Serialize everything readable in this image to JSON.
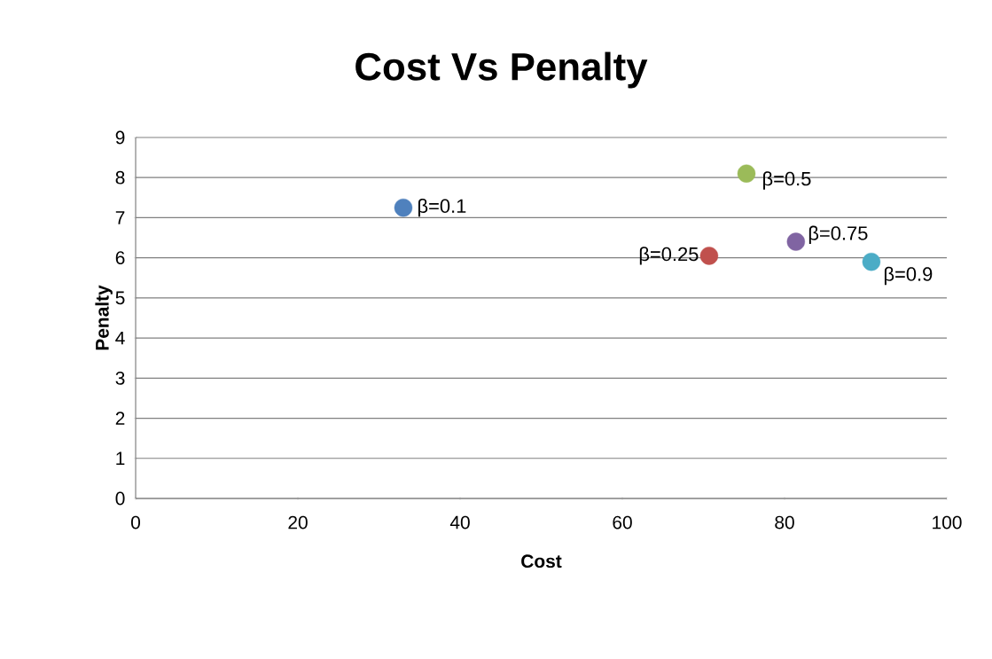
{
  "chart_data": {
    "type": "scatter",
    "title": "Cost Vs Penalty",
    "xlabel": "Cost",
    "ylabel": "Penalty",
    "xlim": [
      0,
      100
    ],
    "ylim": [
      0,
      9
    ],
    "xticks": [
      0,
      20,
      40,
      60,
      80,
      100
    ],
    "yticks": [
      0,
      1,
      2,
      3,
      4,
      5,
      6,
      7,
      8,
      9
    ],
    "grid": "y",
    "marker": "circle",
    "series": [
      {
        "name": "β=0.1",
        "color": "#4f81bd",
        "x": [
          33
        ],
        "values": [
          7.25
        ]
      },
      {
        "name": "β=0.25",
        "color": "#c0504d",
        "x": [
          70.7
        ],
        "values": [
          6.05
        ]
      },
      {
        "name": "β=0.5",
        "color": "#9bbb59",
        "x": [
          75.3
        ],
        "values": [
          8.1
        ]
      },
      {
        "name": "β=0.75",
        "color": "#8064a2",
        "x": [
          81.4
        ],
        "values": [
          6.4
        ]
      },
      {
        "name": "β=0.9",
        "color": "#4bacc6",
        "x": [
          90.7
        ],
        "values": [
          5.9
        ]
      }
    ]
  }
}
